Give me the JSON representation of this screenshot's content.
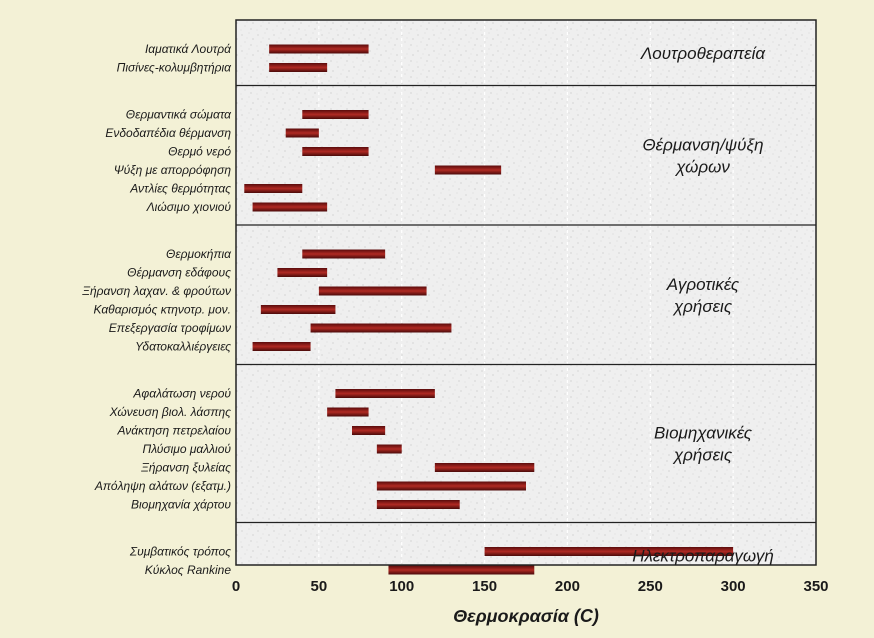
{
  "chart_data": {
    "type": "bar",
    "orientation": "horizontal-range",
    "xlabel": "Θερμοκρασία (C)",
    "xlim": [
      0,
      350
    ],
    "xticks": [
      0,
      50,
      100,
      150,
      200,
      250,
      300,
      350
    ],
    "grid": "vertical dashed",
    "bar_color": "#8b1a1a",
    "groups": [
      {
        "name": [
          "Λουτροθεραπεία"
        ],
        "items": [
          {
            "label": "Ιαματικά Λουτρά",
            "start": 20,
            "end": 80
          },
          {
            "label": "Πισίνες-κολυμβητήρια",
            "start": 20,
            "end": 55
          }
        ]
      },
      {
        "name": [
          "Θέρμανση/ψύξη",
          "χώρων"
        ],
        "items": [
          {
            "label": "Θερμαντικά σώματα",
            "start": 40,
            "end": 80
          },
          {
            "label": "Ενδοδαπέδια θέρμανση",
            "start": 30,
            "end": 50
          },
          {
            "label": "Θερμό νερό",
            "start": 40,
            "end": 80
          },
          {
            "label": "Ψύξη με απορρόφηση",
            "start": 120,
            "end": 160
          },
          {
            "label": "Αντλίες θερμότητας",
            "start": 5,
            "end": 40
          },
          {
            "label": "Λιώσιμο χιονιού",
            "start": 10,
            "end": 55
          }
        ]
      },
      {
        "name": [
          "Αγροτικές",
          "χρήσεις"
        ],
        "items": [
          {
            "label": "Θερμοκήπια",
            "start": 40,
            "end": 90
          },
          {
            "label": "Θέρμανση εδάφους",
            "start": 25,
            "end": 55
          },
          {
            "label": "Ξήρανση λαχαν. & φρούτων",
            "start": 50,
            "end": 115
          },
          {
            "label": "Καθαρισμός κτηνοτρ. μον.",
            "start": 15,
            "end": 60
          },
          {
            "label": "Επεξεργασία τροφίμων",
            "start": 45,
            "end": 130
          },
          {
            "label": "Υδατοκαλλιέργειες",
            "start": 10,
            "end": 45
          }
        ]
      },
      {
        "name": [
          "Βιομηχανικές",
          "χρήσεις"
        ],
        "items": [
          {
            "label": "Αφαλάτωση νερού",
            "start": 60,
            "end": 120
          },
          {
            "label": "Χώνευση βιολ. λάσπης",
            "start": 55,
            "end": 80
          },
          {
            "label": "Ανάκτηση πετρελαίου",
            "start": 70,
            "end": 90
          },
          {
            "label": "Πλύσιμο μαλλιού",
            "start": 85,
            "end": 100
          },
          {
            "label": "Ξήρανση ξυλείας",
            "start": 120,
            "end": 180
          },
          {
            "label": "Απόληψη αλάτων (εξατμ.)",
            "start": 85,
            "end": 175
          },
          {
            "label": "Βιομηχανία χάρτου",
            "start": 85,
            "end": 135
          }
        ]
      },
      {
        "name": [
          "Ηλεκτροπαραγωγή"
        ],
        "items": [
          {
            "label": "Συμβατικός τρόπος",
            "start": 150,
            "end": 300
          },
          {
            "label": "Κύκλος Rankine",
            "start": 92,
            "end": 180
          }
        ]
      }
    ]
  }
}
